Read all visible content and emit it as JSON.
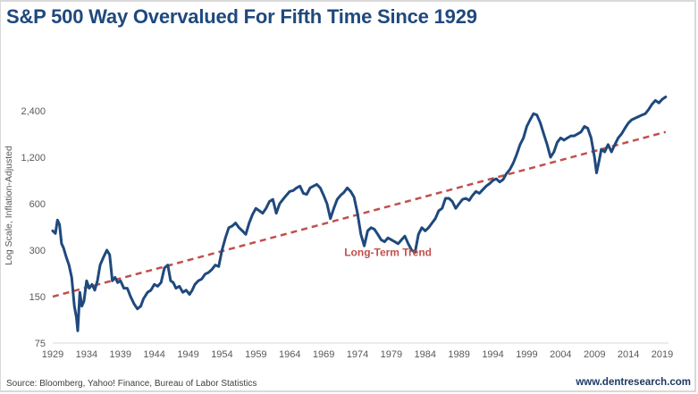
{
  "chart_data": {
    "type": "line",
    "title": "S&P 500 Way Overvalued For Fifth Time Since 1929",
    "xlabel": "",
    "ylabel": "Log Scale, Inflation-Adjusted",
    "yscale": "log",
    "ylim": [
      75,
      3000
    ],
    "xlim": [
      1929,
      2020
    ],
    "y_ticks": [
      75,
      150,
      300,
      600,
      1200,
      2400
    ],
    "y_tick_labels": [
      "75",
      "150",
      "300",
      "600",
      "1,200",
      "2,400"
    ],
    "x_ticks": [
      1929,
      1934,
      1939,
      1944,
      1949,
      1954,
      1959,
      1964,
      1969,
      1974,
      1979,
      1984,
      1989,
      1994,
      1999,
      2004,
      2009,
      2014,
      2019
    ],
    "x_tick_labels": [
      "1929",
      "1934",
      "1939",
      "1944",
      "1949",
      "1954",
      "1959",
      "1964",
      "1969",
      "1974",
      "1979",
      "1984",
      "1989",
      "1994",
      "1999",
      "2004",
      "2009",
      "2014",
      "2019"
    ],
    "grid": false,
    "series": [
      {
        "name": "S&P 500 (inflation-adjusted)",
        "color": "#1f497d",
        "style": "solid",
        "x": [
          1929.0,
          1929.4,
          1929.7,
          1930.0,
          1930.3,
          1930.6,
          1931.0,
          1931.4,
          1931.8,
          1932.2,
          1932.5,
          1932.7,
          1933.0,
          1933.3,
          1933.6,
          1934.0,
          1934.4,
          1934.8,
          1935.2,
          1935.6,
          1936.0,
          1936.5,
          1937.0,
          1937.4,
          1937.8,
          1938.2,
          1938.6,
          1939.0,
          1939.5,
          1940.0,
          1940.5,
          1941.0,
          1941.5,
          1942.0,
          1942.4,
          1943.0,
          1943.5,
          1944.0,
          1944.5,
          1945.0,
          1945.5,
          1946.0,
          1946.4,
          1946.8,
          1947.2,
          1947.7,
          1948.2,
          1948.7,
          1949.2,
          1949.6,
          1950.0,
          1950.5,
          1951.0,
          1951.5,
          1952.0,
          1952.5,
          1953.0,
          1953.5,
          1954.0,
          1954.5,
          1955.0,
          1955.5,
          1956.0,
          1956.5,
          1957.0,
          1957.5,
          1958.0,
          1958.5,
          1959.0,
          1959.5,
          1960.0,
          1960.5,
          1961.0,
          1961.5,
          1962.0,
          1962.5,
          1963.0,
          1963.5,
          1964.0,
          1964.5,
          1965.0,
          1965.5,
          1966.0,
          1966.5,
          1967.0,
          1967.5,
          1968.0,
          1968.5,
          1969.0,
          1969.5,
          1970.0,
          1970.5,
          1971.0,
          1971.5,
          1972.0,
          1972.5,
          1973.0,
          1973.5,
          1974.0,
          1974.5,
          1975.0,
          1975.5,
          1976.0,
          1976.5,
          1977.0,
          1977.5,
          1978.0,
          1978.5,
          1979.0,
          1979.5,
          1980.0,
          1980.5,
          1981.0,
          1981.5,
          1982.0,
          1982.5,
          1983.0,
          1983.5,
          1984.0,
          1984.5,
          1985.0,
          1985.5,
          1986.0,
          1986.5,
          1987.0,
          1987.5,
          1988.0,
          1988.5,
          1989.0,
          1989.5,
          1990.0,
          1990.5,
          1991.0,
          1991.5,
          1992.0,
          1992.5,
          1993.0,
          1993.5,
          1994.0,
          1994.5,
          1995.0,
          1995.5,
          1996.0,
          1996.5,
          1997.0,
          1997.5,
          1998.0,
          1998.5,
          1999.0,
          1999.5,
          2000.0,
          2000.5,
          2001.0,
          2001.5,
          2002.0,
          2002.5,
          2003.0,
          2003.5,
          2004.0,
          2004.5,
          2005.0,
          2005.5,
          2006.0,
          2006.5,
          2007.0,
          2007.5,
          2008.0,
          2008.5,
          2009.0,
          2009.3,
          2009.7,
          2010.0,
          2010.5,
          2011.0,
          2011.5,
          2012.0,
          2012.5,
          2013.0,
          2013.5,
          2014.0,
          2014.5,
          2015.0,
          2015.5,
          2016.0,
          2016.5,
          2017.0,
          2017.5,
          2018.0,
          2018.5,
          2019.0,
          2019.5
        ],
        "values": [
          400,
          385,
          470,
          440,
          330,
          310,
          270,
          240,
          200,
          130,
          110,
          90,
          160,
          130,
          140,
          190,
          170,
          180,
          165,
          190,
          240,
          270,
          300,
          280,
          190,
          200,
          185,
          190,
          170,
          170,
          150,
          135,
          125,
          130,
          145,
          160,
          165,
          180,
          175,
          185,
          230,
          240,
          190,
          185,
          170,
          175,
          160,
          165,
          155,
          165,
          180,
          190,
          195,
          210,
          215,
          225,
          240,
          235,
          300,
          360,
          420,
          430,
          450,
          420,
          400,
          380,
          450,
          510,
          560,
          540,
          520,
          560,
          620,
          640,
          520,
          600,
          640,
          680,
          720,
          730,
          760,
          780,
          700,
          690,
          760,
          780,
          800,
          760,
          680,
          600,
          480,
          560,
          640,
          680,
          710,
          760,
          720,
          660,
          520,
          380,
          320,
          400,
          420,
          410,
          380,
          350,
          340,
          360,
          350,
          340,
          330,
          350,
          370,
          330,
          300,
          290,
          380,
          420,
          400,
          420,
          450,
          480,
          540,
          560,
          650,
          650,
          620,
          560,
          600,
          640,
          650,
          630,
          680,
          720,
          700,
          740,
          780,
          810,
          850,
          870,
          830,
          860,
          940,
          1000,
          1100,
          1250,
          1450,
          1600,
          1900,
          2100,
          2300,
          2250,
          2000,
          1700,
          1450,
          1200,
          1300,
          1500,
          1600,
          1550,
          1600,
          1650,
          1650,
          1700,
          1750,
          1900,
          1850,
          1600,
          1200,
          950,
          1150,
          1350,
          1300,
          1450,
          1300,
          1450,
          1600,
          1700,
          1850,
          2000,
          2100,
          2150,
          2200,
          2250,
          2300,
          2450,
          2650,
          2800,
          2700,
          2850,
          2950
        ]
      },
      {
        "name": "Long-Term Trend",
        "color": "#c0504d",
        "style": "dashed",
        "x": [
          1929,
          2019.5
        ],
        "values": [
          150,
          1750
        ]
      }
    ],
    "annotations": [
      {
        "text": "Long-Term Trend",
        "x": 1978.5,
        "y": 290,
        "color": "#c0504d"
      }
    ],
    "legend": "none"
  },
  "footer": {
    "source": "Source: Bloomberg, Yahoo! Finance, Bureau of Labor Statistics",
    "url": "www.dentresearch.com"
  },
  "colors": {
    "title": "#1f497d",
    "series": "#1f497d",
    "trend": "#c0504d",
    "axis_text": "#595959"
  }
}
